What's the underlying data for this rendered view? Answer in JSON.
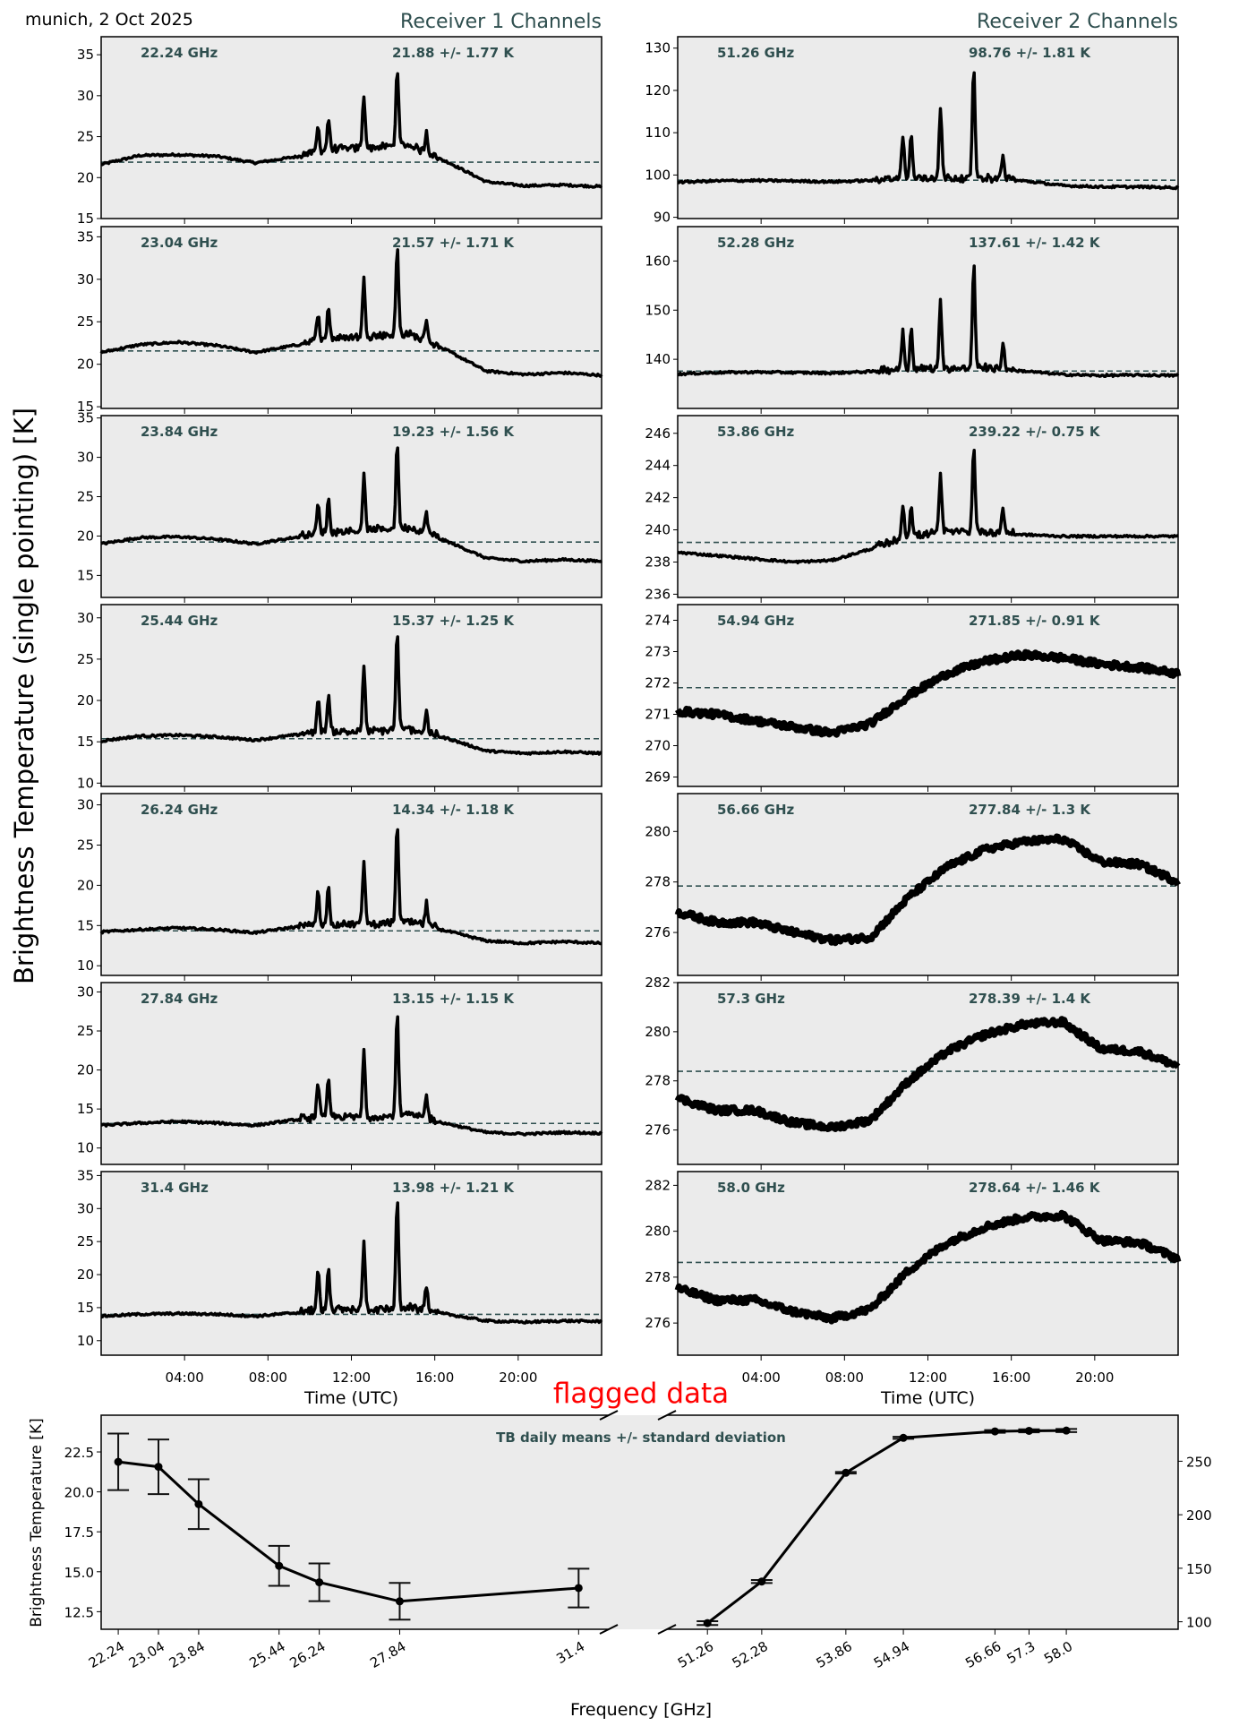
{
  "header": {
    "location_date": "munich, 2 Oct 2025",
    "receiver1_title": "Receiver 1 Channels",
    "receiver2_title": "Receiver 2 Channels",
    "shared_ylabel": "Brightness Temperature (single pointing) [K]",
    "flagged_label": "flagged data"
  },
  "colors": {
    "panel_bg": "#ebebeb",
    "annotation": "#2f4f4f",
    "series": "#000000",
    "flagged": "#ff0000"
  },
  "chart_data": [
    {
      "type": "line",
      "title": "Receiver 1 Channels",
      "xlabel": "Time (UTC)",
      "xticks": [
        "04:00",
        "08:00",
        "12:00",
        "16:00",
        "20:00"
      ],
      "xlim_hours": [
        0,
        24
      ],
      "panels": [
        {
          "freq_label": "22.24 GHz",
          "stat_label": "21.88 +/- 1.77 K",
          "mean": 21.88,
          "std": 1.77,
          "ylim": [
            15,
            37.2
          ],
          "yticks": [
            15,
            20,
            25,
            30,
            35
          ],
          "base": [
            21.6,
            22.7,
            22.8,
            22.6,
            21.8,
            22.5,
            23.3,
            23.5,
            23.8,
            21.9,
            19.5,
            19.0,
            19.1,
            18.9
          ],
          "peaks": [
            [
              10.4,
              26
            ],
            [
              10.9,
              27
            ],
            [
              12.6,
              30
            ],
            [
              14.2,
              33.5
            ],
            [
              15.6,
              25.5
            ]
          ]
        },
        {
          "freq_label": "23.04 GHz",
          "stat_label": "21.57 +/- 1.71 K",
          "mean": 21.57,
          "std": 1.71,
          "ylim": [
            14.8,
            36.2
          ],
          "yticks": [
            15,
            20,
            25,
            30,
            35
          ],
          "base": [
            21.4,
            22.3,
            22.6,
            22.2,
            21.4,
            22.2,
            22.9,
            23.2,
            23.4,
            21.6,
            19.2,
            18.8,
            19.0,
            18.7
          ],
          "peaks": [
            [
              10.4,
              26
            ],
            [
              10.9,
              26.7
            ],
            [
              12.6,
              29.8
            ],
            [
              14.2,
              33.7
            ],
            [
              15.6,
              25.4
            ]
          ]
        },
        {
          "freq_label": "23.84 GHz",
          "stat_label": "19.23 +/- 1.56 K",
          "mean": 19.23,
          "std": 1.56,
          "ylim": [
            12.2,
            35.3
          ],
          "yticks": [
            15,
            20,
            25,
            30,
            35
          ],
          "base": [
            19.0,
            19.8,
            19.9,
            19.6,
            19.0,
            19.8,
            20.4,
            20.6,
            20.9,
            19.3,
            17.2,
            16.8,
            17.0,
            16.8
          ],
          "peaks": [
            [
              10.4,
              23.8
            ],
            [
              10.9,
              24.4
            ],
            [
              12.6,
              27.5
            ],
            [
              14.2,
              31.8
            ],
            [
              15.6,
              22.9
            ]
          ]
        },
        {
          "freq_label": "25.44 GHz",
          "stat_label": "15.37 +/- 1.25 K",
          "mean": 15.37,
          "std": 1.25,
          "ylim": [
            9.6,
            31.6
          ],
          "yticks": [
            10,
            15,
            20,
            25,
            30
          ],
          "base": [
            15.1,
            15.7,
            15.8,
            15.6,
            15.2,
            15.8,
            16.1,
            16.1,
            16.4,
            15.4,
            13.9,
            13.6,
            13.8,
            13.6
          ],
          "peaks": [
            [
              10.4,
              20.2
            ],
            [
              10.9,
              20.5
            ],
            [
              12.6,
              23.7
            ],
            [
              14.2,
              28.5
            ],
            [
              15.6,
              18.6
            ]
          ]
        },
        {
          "freq_label": "26.24 GHz",
          "stat_label": "14.34 +/- 1.18 K",
          "mean": 14.34,
          "std": 1.18,
          "ylim": [
            8.8,
            31.4
          ],
          "yticks": [
            10,
            15,
            20,
            25,
            30
          ],
          "base": [
            14.2,
            14.5,
            14.7,
            14.5,
            14.1,
            14.8,
            15.0,
            15.0,
            15.3,
            14.3,
            13.1,
            12.8,
            13.0,
            12.8
          ],
          "peaks": [
            [
              10.4,
              19.3
            ],
            [
              10.9,
              19.5
            ],
            [
              12.6,
              22.9
            ],
            [
              14.2,
              27.8
            ],
            [
              15.6,
              17.6
            ]
          ]
        },
        {
          "freq_label": "27.84 GHz",
          "stat_label": "13.15 +/- 1.15 K",
          "mean": 13.15,
          "std": 1.15,
          "ylim": [
            7.9,
            31.2
          ],
          "yticks": [
            10,
            15,
            20,
            25,
            30
          ],
          "base": [
            12.9,
            13.2,
            13.4,
            13.2,
            12.9,
            13.6,
            13.8,
            13.8,
            14.1,
            13.1,
            12.0,
            11.8,
            12.0,
            11.9
          ],
          "peaks": [
            [
              10.4,
              18.4
            ],
            [
              10.9,
              18.5
            ],
            [
              12.6,
              22.2
            ],
            [
              14.2,
              27.5
            ],
            [
              15.6,
              16.6
            ]
          ]
        },
        {
          "freq_label": "31.4 GHz",
          "stat_label": "13.98 +/- 1.21 K",
          "mean": 13.98,
          "std": 1.21,
          "ylim": [
            7.8,
            35.6
          ],
          "yticks": [
            10,
            15,
            20,
            25,
            30,
            35
          ],
          "base": [
            13.7,
            14.0,
            14.1,
            14.0,
            13.7,
            14.2,
            14.5,
            14.5,
            14.8,
            14.0,
            13.0,
            12.8,
            13.0,
            12.9
          ],
          "peaks": [
            [
              10.4,
              20.2
            ],
            [
              10.9,
              20.4
            ],
            [
              12.6,
              24.6
            ],
            [
              14.2,
              31.2
            ],
            [
              15.6,
              18.3
            ]
          ]
        }
      ]
    },
    {
      "type": "line",
      "title": "Receiver 2 Channels",
      "xlabel": "Time (UTC)",
      "xticks": [
        "04:00",
        "08:00",
        "12:00",
        "16:00",
        "20:00"
      ],
      "xlim_hours": [
        0,
        24
      ],
      "panels": [
        {
          "freq_label": "51.26 GHz",
          "stat_label": "98.76 +/- 1.81 K",
          "mean": 98.76,
          "std": 1.81,
          "ylim": [
            89.7,
            132.7
          ],
          "yticks": [
            90,
            100,
            110,
            120,
            130
          ],
          "base": [
            98.3,
            98.6,
            98.7,
            98.6,
            98.4,
            98.7,
            99.0,
            99.0,
            99.0,
            98.6,
            97.5,
            97.2,
            97.2,
            97.0
          ],
          "peaks": [
            [
              10.8,
              109
            ],
            [
              11.2,
              109
            ],
            [
              12.6,
              116
            ],
            [
              14.2,
              125.5
            ],
            [
              15.6,
              105
            ]
          ]
        },
        {
          "freq_label": "52.28 GHz",
          "stat_label": "137.61 +/- 1.42 K",
          "mean": 137.61,
          "std": 1.42,
          "ylim": [
            130,
            167
          ],
          "yticks": [
            140,
            150,
            160
          ],
          "base": [
            137.0,
            137.3,
            137.4,
            137.3,
            137.2,
            137.5,
            137.8,
            137.9,
            138.0,
            137.6,
            136.9,
            136.7,
            136.8,
            136.7
          ],
          "peaks": [
            [
              10.8,
              145.8
            ],
            [
              11.2,
              145.7
            ],
            [
              12.6,
              151.5
            ],
            [
              14.2,
              159.3
            ],
            [
              15.6,
              142.8
            ]
          ]
        },
        {
          "freq_label": "53.86 GHz",
          "stat_label": "239.22 +/- 0.75 K",
          "mean": 239.22,
          "std": 0.75,
          "ylim": [
            235.8,
            247.1
          ],
          "yticks": [
            236,
            238,
            240,
            242,
            244,
            246
          ],
          "base": [
            238.6,
            238.4,
            238.2,
            238.0,
            238.1,
            238.8,
            239.5,
            239.8,
            239.8,
            239.7,
            239.6,
            239.6,
            239.6,
            239.6
          ],
          "peaks": [
            [
              10.8,
              241.6
            ],
            [
              11.2,
              241.4
            ],
            [
              12.6,
              243.4
            ],
            [
              14.2,
              245.3
            ],
            [
              15.6,
              241.3
            ]
          ]
        },
        {
          "freq_label": "54.94 GHz",
          "stat_label": "271.85 +/- 0.91 K",
          "mean": 271.85,
          "std": 0.91,
          "ylim": [
            268.7,
            274.5
          ],
          "yticks": [
            269,
            270,
            271,
            272,
            273,
            274
          ],
          "base": [
            271.1,
            271.0,
            270.8,
            270.6,
            270.4,
            270.7,
            271.6,
            272.3,
            272.7,
            272.9,
            272.8,
            272.6,
            272.5,
            272.3
          ],
          "peaks": []
        },
        {
          "freq_label": "56.66 GHz",
          "stat_label": "277.84 +/- 1.3 K",
          "mean": 277.84,
          "std": 1.3,
          "ylim": [
            274.3,
            281.5
          ],
          "yticks": [
            276,
            278,
            280
          ],
          "base": [
            276.8,
            276.4,
            276.4,
            276.0,
            275.7,
            275.8,
            277.4,
            278.6,
            279.3,
            279.6,
            279.7,
            278.8,
            278.7,
            278.0
          ],
          "peaks": []
        },
        {
          "freq_label": "57.3 GHz",
          "stat_label": "278.39 +/- 1.4 K",
          "mean": 278.39,
          "std": 1.4,
          "ylim": [
            274.6,
            282.0
          ],
          "yticks": [
            276,
            278,
            280,
            282
          ],
          "base": [
            277.3,
            276.8,
            276.8,
            276.3,
            276.1,
            276.4,
            278.0,
            279.2,
            279.9,
            280.3,
            280.4,
            279.3,
            279.2,
            278.6
          ],
          "peaks": []
        },
        {
          "freq_label": "58.0 GHz",
          "stat_label": "278.64 +/- 1.46 K",
          "mean": 278.64,
          "std": 1.46,
          "ylim": [
            274.6,
            282.6
          ],
          "yticks": [
            276,
            278,
            280,
            282
          ],
          "base": [
            277.5,
            277.0,
            277.0,
            276.5,
            276.2,
            276.6,
            278.3,
            279.5,
            280.2,
            280.6,
            280.7,
            279.6,
            279.5,
            278.8
          ],
          "peaks": []
        }
      ]
    },
    {
      "type": "line",
      "title": "TB daily means +/- standard deviation",
      "xlabel": "Frequency [GHz]",
      "ylabel": "Brightness Temperature [K]",
      "left": {
        "x": [
          22.24,
          23.04,
          23.84,
          25.44,
          26.24,
          27.84,
          31.4
        ],
        "xtick_labels": [
          "22.24",
          "23.04",
          "23.84",
          "25.44",
          "26.24",
          "27.84",
          "31.4"
        ],
        "y": [
          21.88,
          21.57,
          19.23,
          15.37,
          14.34,
          13.15,
          13.98
        ],
        "err": [
          1.77,
          1.71,
          1.56,
          1.25,
          1.18,
          1.15,
          1.21
        ],
        "ylim": [
          11.4,
          24.8
        ],
        "yticks": [
          "12.5",
          "15.0",
          "17.5",
          "20.0",
          "22.5"
        ]
      },
      "right": {
        "x": [
          51.26,
          52.28,
          53.86,
          54.94,
          56.66,
          57.3,
          58.0
        ],
        "xtick_labels": [
          "51.26",
          "52.28",
          "53.86",
          "54.94",
          "56.66",
          "57.3",
          "58.0"
        ],
        "y": [
          98.76,
          137.61,
          239.22,
          271.85,
          277.84,
          278.39,
          278.64
        ],
        "err": [
          1.81,
          1.42,
          0.75,
          0.91,
          1.3,
          1.4,
          1.46
        ],
        "ylim": [
          93,
          293
        ],
        "yticks": [
          "100",
          "150",
          "200",
          "250"
        ]
      }
    }
  ]
}
